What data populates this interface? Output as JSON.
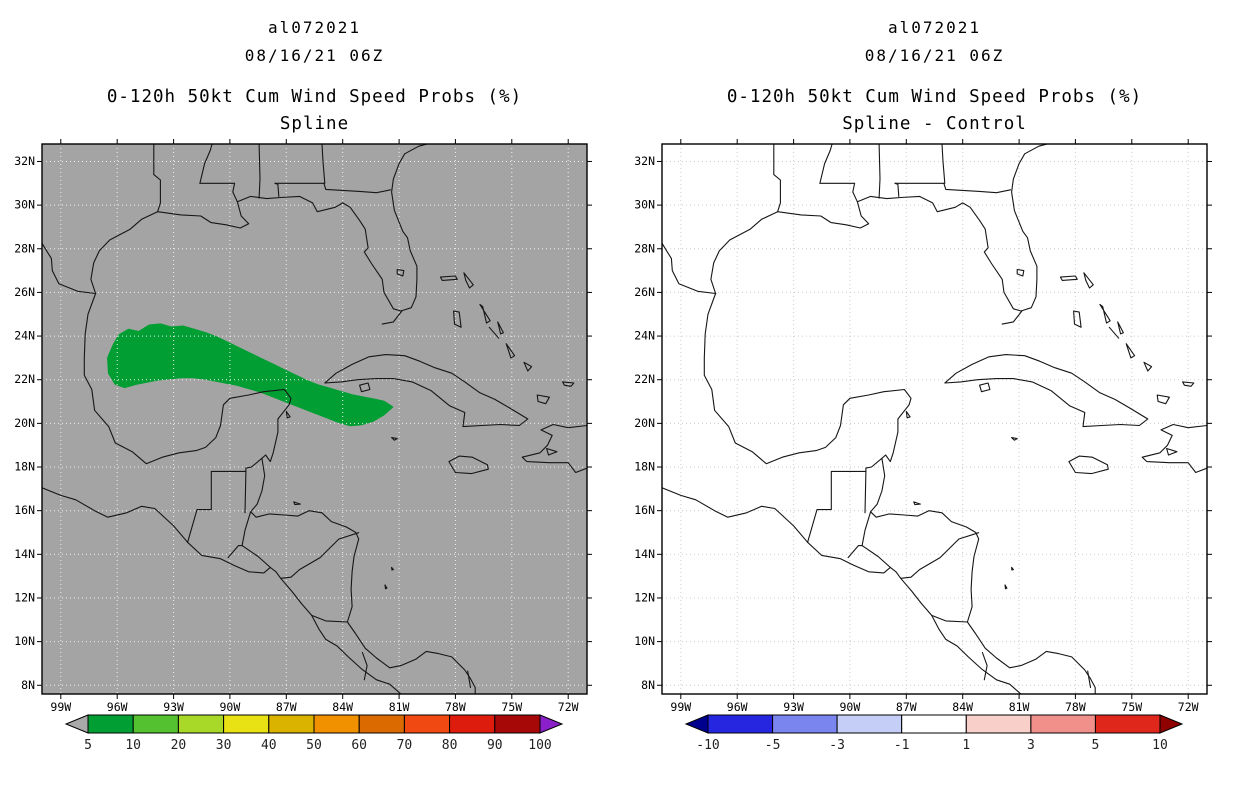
{
  "figure": {
    "background": "#ffffff"
  },
  "chart_data": [
    {
      "type": "filled_contour_map",
      "panel": "left",
      "storm_id": "al072021",
      "init_time": "08/16/21 06Z",
      "title": "0-120h 50kt Cum Wind Speed Probs (%)",
      "subtitle": "Spline",
      "map_bg": "#a4a4a4",
      "grid_color": "#f0f0f0",
      "grid": "dotted",
      "lon_range": [
        -100,
        -71
      ],
      "lat_range": [
        7.6,
        32.8
      ],
      "lon_ticks": [
        "99W",
        "96W",
        "93W",
        "90W",
        "87W",
        "84W",
        "81W",
        "78W",
        "75W",
        "72W"
      ],
      "lat_ticks": [
        "32N",
        "30N",
        "28N",
        "26N",
        "24N",
        "22N",
        "20N",
        "18N",
        "16N",
        "14N",
        "12N",
        "10N",
        "8N"
      ],
      "colorbar": {
        "units": "%",
        "labels": [
          "5",
          "10",
          "20",
          "30",
          "40",
          "50",
          "60",
          "70",
          "80",
          "90",
          "100"
        ],
        "colors": [
          "#009e33",
          "#53c130",
          "#a8d828",
          "#e8e215",
          "#d9b300",
          "#f29100",
          "#db6a00",
          "#f04a12",
          "#dd1c0e",
          "#a60707"
        ],
        "under_color": "#a9a9a9",
        "over_color": "#8b1fc9"
      },
      "regions": [
        {
          "level": "5-10",
          "color": "#009e33",
          "polygon": [
            [
              -96.1,
              21.8
            ],
            [
              -96.45,
              22.3
            ],
            [
              -96.5,
              23.0
            ],
            [
              -96.2,
              23.6
            ],
            [
              -95.9,
              24.05
            ],
            [
              -95.4,
              24.3
            ],
            [
              -94.85,
              24.2
            ],
            [
              -94.3,
              24.5
            ],
            [
              -93.7,
              24.55
            ],
            [
              -93.1,
              24.4
            ],
            [
              -92.5,
              24.45
            ],
            [
              -91.9,
              24.3
            ],
            [
              -91.3,
              24.15
            ],
            [
              -90.7,
              23.95
            ],
            [
              -90.1,
              23.7
            ],
            [
              -89.5,
              23.45
            ],
            [
              -88.9,
              23.2
            ],
            [
              -88.3,
              22.95
            ],
            [
              -87.7,
              22.7
            ],
            [
              -87.1,
              22.45
            ],
            [
              -86.5,
              22.2
            ],
            [
              -85.9,
              21.95
            ],
            [
              -85.3,
              21.75
            ],
            [
              -84.7,
              21.6
            ],
            [
              -84.1,
              21.45
            ],
            [
              -83.5,
              21.3
            ],
            [
              -82.9,
              21.2
            ],
            [
              -82.3,
              21.1
            ],
            [
              -81.8,
              21.0
            ],
            [
              -81.35,
              20.75
            ],
            [
              -81.8,
              20.4
            ],
            [
              -82.4,
              20.1
            ],
            [
              -83.0,
              19.95
            ],
            [
              -83.6,
              19.9
            ],
            [
              -84.2,
              20.05
            ],
            [
              -84.8,
              20.25
            ],
            [
              -85.4,
              20.45
            ],
            [
              -86.0,
              20.65
            ],
            [
              -86.6,
              20.85
            ],
            [
              -87.2,
              21.05
            ],
            [
              -87.8,
              21.25
            ],
            [
              -88.4,
              21.45
            ],
            [
              -89.0,
              21.6
            ],
            [
              -89.6,
              21.75
            ],
            [
              -90.2,
              21.85
            ],
            [
              -90.8,
              21.95
            ],
            [
              -91.4,
              22.05
            ],
            [
              -92.0,
              22.1
            ],
            [
              -92.6,
              22.1
            ],
            [
              -93.2,
              22.05
            ],
            [
              -93.8,
              22.0
            ],
            [
              -94.4,
              21.9
            ],
            [
              -95.0,
              21.8
            ],
            [
              -95.6,
              21.65
            ]
          ]
        }
      ]
    },
    {
      "type": "filled_contour_map",
      "panel": "right",
      "storm_id": "al072021",
      "init_time": "08/16/21 06Z",
      "title": "0-120h 50kt Cum Wind Speed Probs (%)",
      "subtitle": "Spline - Control",
      "map_bg": "#ffffff",
      "grid_color": "#d6c9c9",
      "grid": "dotted",
      "lon_range": [
        -100,
        -71
      ],
      "lat_range": [
        7.6,
        32.8
      ],
      "lon_ticks": [
        "99W",
        "96W",
        "93W",
        "90W",
        "87W",
        "84W",
        "81W",
        "78W",
        "75W",
        "72W"
      ],
      "lat_ticks": [
        "32N",
        "30N",
        "28N",
        "26N",
        "24N",
        "22N",
        "20N",
        "18N",
        "16N",
        "14N",
        "12N",
        "10N",
        "8N"
      ],
      "colorbar": {
        "units": "%",
        "labels": [
          "-10",
          "-5",
          "-3",
          "-1",
          "1",
          "3",
          "5",
          "10"
        ],
        "colors": [
          "#2626e0",
          "#7a85ef",
          "#c4cef7",
          "#ffffff",
          "#f8cfc9",
          "#f1908a",
          "#e0271c"
        ],
        "under_color": "#00008f",
        "over_color": "#8f0000"
      },
      "regions": []
    }
  ]
}
